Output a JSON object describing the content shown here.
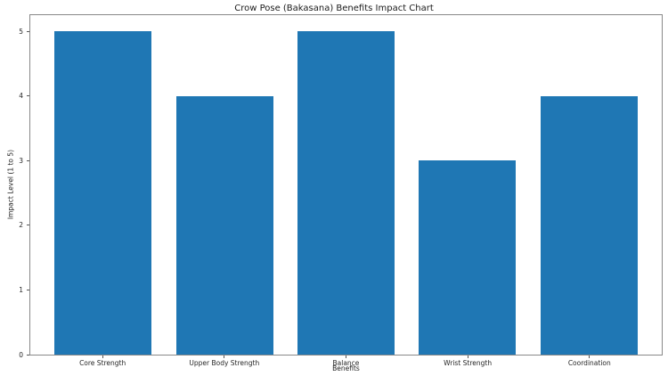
{
  "chart_data": {
    "type": "bar",
    "title": "Crow Pose (Bakasana) Benefits Impact Chart",
    "categories": [
      "Core Strength",
      "Upper Body Strength",
      "Balance",
      "Wrist Strength",
      "Coordination"
    ],
    "values": [
      5,
      4,
      5,
      3,
      4
    ],
    "xlabel": "Benefits",
    "ylabel": "Impact Level (1 to 5)",
    "ylim": [
      0,
      5.25
    ],
    "yticks": [
      0,
      1,
      2,
      3,
      4,
      5
    ],
    "bar_color": "#1f77b4",
    "grid": false,
    "legend_position": "none",
    "spine_color": "#888888",
    "tick_color": "#555555",
    "text_color": "#1a1a1a"
  }
}
